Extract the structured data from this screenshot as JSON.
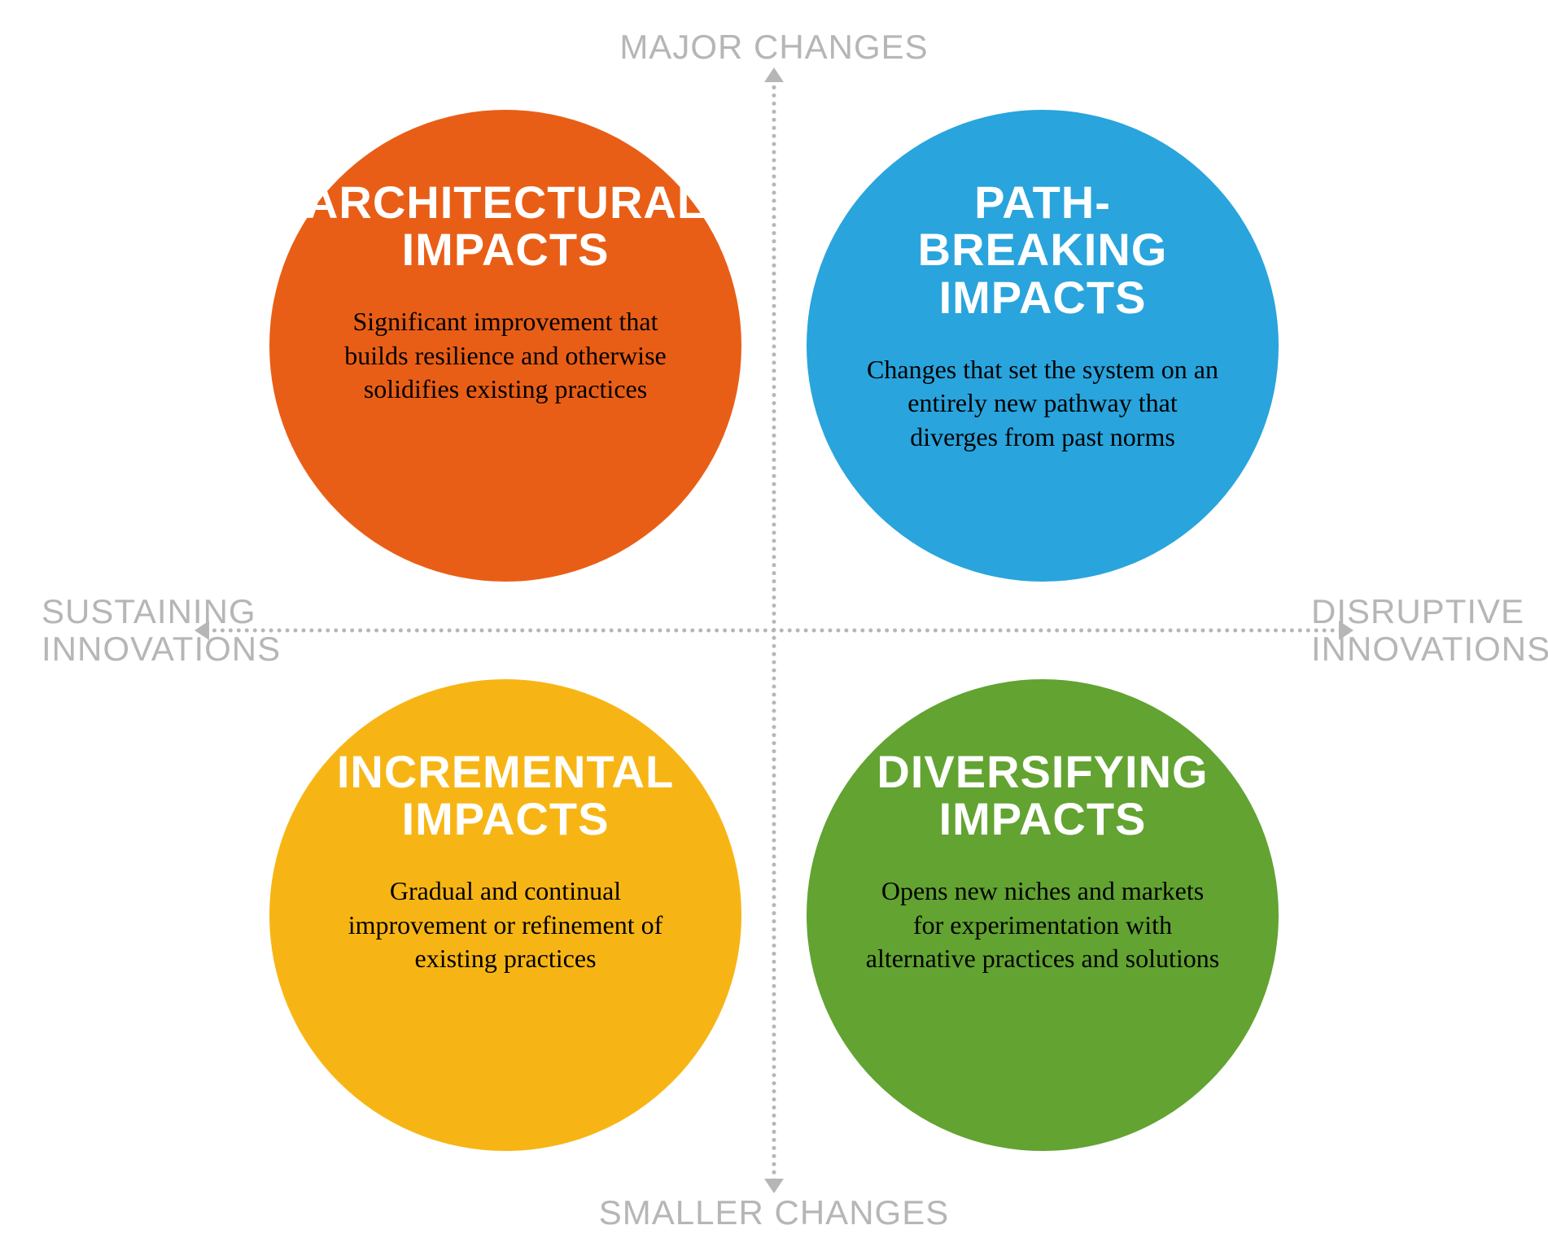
{
  "diagram": {
    "type": "quadrant-infographic",
    "background_color": "#ffffff",
    "axis_color": "#b6b6b6",
    "axis_style": "dotted",
    "axis_dot_size": 5,
    "circle_diameter": 580,
    "title_fontsize": 56,
    "title_color": "#ffffff",
    "desc_fontsize": 32,
    "desc_color": "#000000",
    "axis_label_fontsize": 42,
    "axis_label_color": "#b6b6b6",
    "axes": {
      "top": "MAJOR CHANGES",
      "bottom": "SMALLER CHANGES",
      "left_line1": "SUSTAINING",
      "left_line2": "INNOVATIONS",
      "right_line1": "DISRUPTIVE",
      "right_line2": "INNOVATIONS"
    },
    "quadrants": {
      "top_left": {
        "title_line1": "ARCHITECTURAL",
        "title_line2": "IMPACTS",
        "description": "Significant improvement that builds resilience and otherwise solidifies existing practices",
        "color": "#e95e16"
      },
      "top_right": {
        "title_line1": "PATH-BREAKING",
        "title_line2": "IMPACTS",
        "description": "Changes that set the system on an entirely new pathway that diverges from past norms",
        "color": "#29a4dd"
      },
      "bottom_left": {
        "title_line1": "INCREMENTAL",
        "title_line2": "IMPACTS",
        "description": "Gradual and continual improvement or refinement of existing practices",
        "color": "#f7b515"
      },
      "bottom_right": {
        "title_line1": "DIVERSIFYING",
        "title_line2": "IMPACTS",
        "description": "Opens new niches and markets for experimentation with alternative practices and solutions",
        "color": "#62a331"
      }
    }
  }
}
